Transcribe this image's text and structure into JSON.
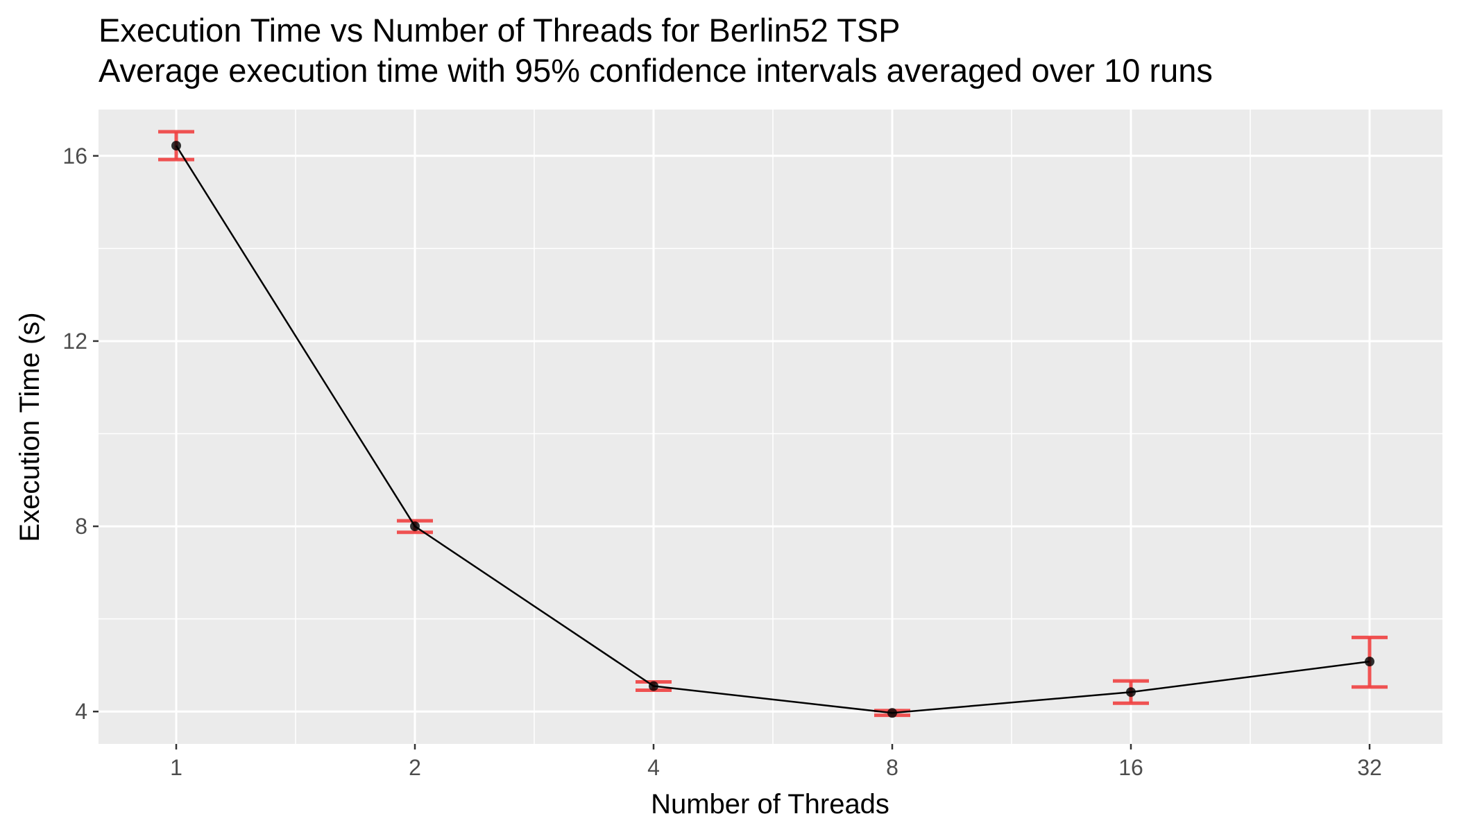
{
  "chart_data": {
    "type": "line",
    "title": "Execution Time vs Number of Threads for Berlin52 TSP",
    "subtitle": "Average execution time with 95% confidence intervals averaged over 10 runs",
    "xlabel": "Number of Threads",
    "ylabel": "Execution Time (s)",
    "x_scale": "log2",
    "x": [
      1,
      2,
      4,
      8,
      16,
      32
    ],
    "x_tick_labels": [
      "1",
      "2",
      "4",
      "8",
      "16",
      "32"
    ],
    "y_ticks": [
      4,
      8,
      12,
      16
    ],
    "ylim": [
      3.3,
      17.0
    ],
    "grid": true,
    "series": [
      {
        "values": [
          16.22,
          8.0,
          4.55,
          3.97,
          4.42,
          5.08
        ],
        "ci_lower": [
          15.92,
          7.87,
          4.46,
          3.92,
          4.18,
          4.53
        ],
        "ci_upper": [
          16.52,
          8.12,
          4.64,
          4.02,
          4.66,
          5.6
        ]
      }
    ],
    "colors": {
      "panel_background": "#ebebeb",
      "grid": "#ffffff",
      "line": "#000000",
      "point": "#000000",
      "error_bar": "#f04040"
    }
  }
}
